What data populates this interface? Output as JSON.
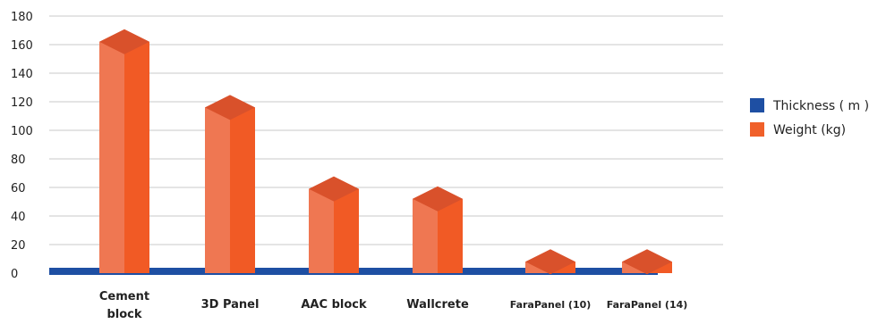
{
  "chart_data": {
    "type": "bar",
    "style": "3d-column",
    "categories": [
      "Cement block",
      "3D Panel",
      "AAC block",
      "Wallcrete",
      "FaraPanel (10)",
      "FaraPanel (14)"
    ],
    "series": [
      {
        "name": "Thickness ( m )",
        "values": [
          0.2,
          0.15,
          0.2,
          0.15,
          0.1,
          0.14
        ],
        "color": "#1e4fa3"
      },
      {
        "name": "Weight (kg)",
        "values": [
          162,
          116,
          59,
          52,
          8,
          8
        ],
        "color": "#f0602a"
      }
    ],
    "ylim": [
      0,
      180
    ],
    "yticks": [
      0,
      20,
      40,
      60,
      80,
      100,
      120,
      140,
      160,
      180
    ],
    "grid": true,
    "legend_position": "right",
    "title": "",
    "xlabel": "",
    "ylabel": ""
  }
}
